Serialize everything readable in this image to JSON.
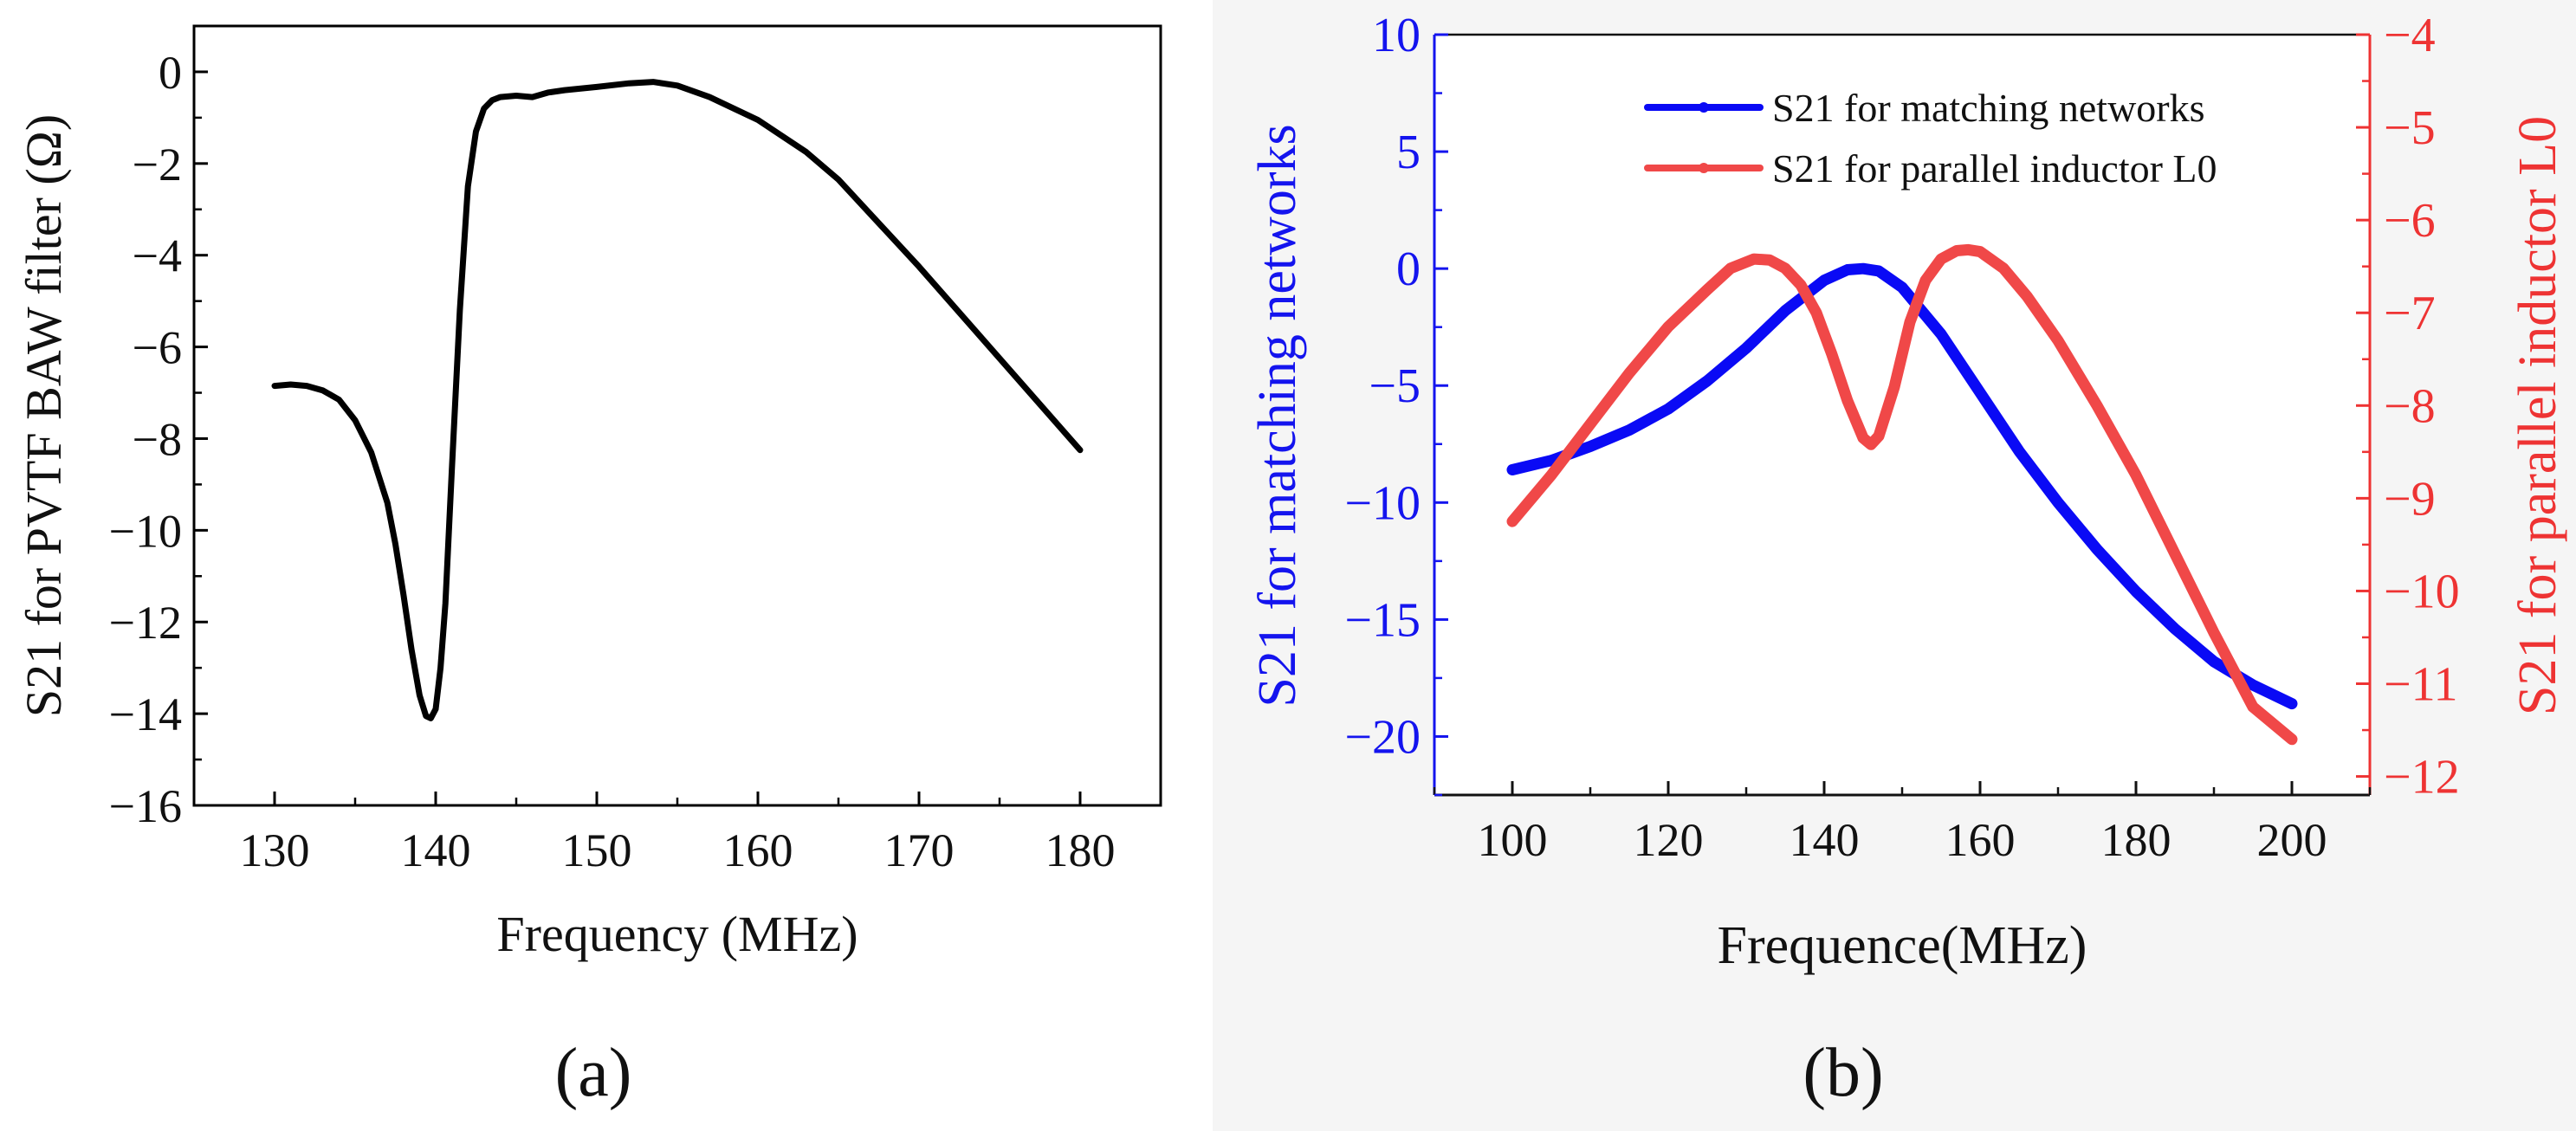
{
  "chart_data": [
    {
      "panel": "a",
      "type": "line",
      "caption": "(a)",
      "xlabel": "Frequency (MHz)",
      "ylabel": "S21 for PVTF BAW filter (Ω)",
      "xlim": [
        125,
        185
      ],
      "ylim": [
        -16,
        1
      ],
      "xticks": [
        130,
        140,
        150,
        160,
        170,
        180
      ],
      "yticks": [
        0,
        -2,
        -4,
        -6,
        -8,
        -10,
        -12,
        -14,
        -16
      ],
      "color": "#000000",
      "series": [
        {
          "name": "S21 for PVTF BAW filter",
          "x": [
            130,
            131,
            132,
            133,
            134,
            135,
            136,
            137,
            137.5,
            138,
            138.5,
            139,
            139.4,
            139.7,
            140,
            140.3,
            140.6,
            141,
            141.5,
            142,
            142.5,
            143,
            143.5,
            144,
            145,
            146,
            147,
            148,
            150,
            152,
            153.5,
            155,
            157,
            160,
            163,
            165,
            170,
            175,
            180
          ],
          "y": [
            -6.85,
            -6.82,
            -6.85,
            -6.95,
            -7.15,
            -7.6,
            -8.3,
            -9.4,
            -10.3,
            -11.4,
            -12.6,
            -13.6,
            -14.05,
            -14.1,
            -13.9,
            -13.0,
            -11.6,
            -8.7,
            -5.2,
            -2.5,
            -1.3,
            -0.8,
            -0.62,
            -0.55,
            -0.52,
            -0.55,
            -0.45,
            -0.4,
            -0.33,
            -0.25,
            -0.22,
            -0.3,
            -0.55,
            -1.05,
            -1.75,
            -2.35,
            -4.25,
            -6.25,
            -8.25
          ]
        }
      ]
    },
    {
      "panel": "b",
      "type": "line",
      "caption": "(b)",
      "xlabel": "Frequence(MHz)",
      "ylabel_left": "S21 for matching networks",
      "ylabel_right": "S21 for parallel inductor L0",
      "xlim": [
        90,
        210
      ],
      "ylim_left": [
        -22.5,
        10
      ],
      "ylim_right": [
        -12.2,
        -4
      ],
      "xticks": [
        100,
        120,
        140,
        160,
        180,
        200
      ],
      "yticks_left": [
        10,
        5,
        0,
        -5,
        -10,
        -15,
        -20
      ],
      "yticks_right": [
        -4,
        -5,
        -6,
        -7,
        -8,
        -9,
        -10,
        -11,
        -12
      ],
      "left_axis_color": "#1414ee",
      "right_axis_color": "#ee3333",
      "legend_position": "top-right",
      "series": [
        {
          "name": "S21 for matching networks",
          "axis": "left",
          "color": "#0a0af5",
          "x": [
            100,
            105,
            110,
            115,
            120,
            125,
            130,
            135,
            140,
            143,
            145,
            147,
            150,
            155,
            160,
            165,
            170,
            175,
            180,
            185,
            190,
            195,
            200
          ],
          "y": [
            -8.6,
            -8.2,
            -7.6,
            -6.9,
            -6.0,
            -4.8,
            -3.4,
            -1.8,
            -0.5,
            -0.05,
            0.0,
            -0.1,
            -0.8,
            -2.8,
            -5.3,
            -7.8,
            -10.0,
            -12.0,
            -13.8,
            -15.4,
            -16.8,
            -17.8,
            -18.6
          ]
        },
        {
          "name": "S21 for parallel inductor L0",
          "axis": "right",
          "color": "#f04848",
          "x": [
            100,
            105,
            110,
            115,
            120,
            125,
            128,
            131,
            133,
            135,
            137,
            139,
            141,
            143,
            145,
            146,
            147,
            149,
            151,
            153,
            155,
            157,
            158.5,
            160,
            163,
            166,
            170,
            175,
            180,
            185,
            190,
            195,
            200
          ],
          "y": [
            -9.25,
            -8.75,
            -8.2,
            -7.65,
            -7.15,
            -6.75,
            -6.52,
            -6.42,
            -6.43,
            -6.52,
            -6.7,
            -7.0,
            -7.45,
            -7.95,
            -8.35,
            -8.42,
            -8.33,
            -7.8,
            -7.1,
            -6.65,
            -6.42,
            -6.33,
            -6.32,
            -6.34,
            -6.52,
            -6.82,
            -7.3,
            -8.0,
            -8.75,
            -9.6,
            -10.45,
            -11.25,
            -11.6
          ]
        }
      ]
    }
  ]
}
